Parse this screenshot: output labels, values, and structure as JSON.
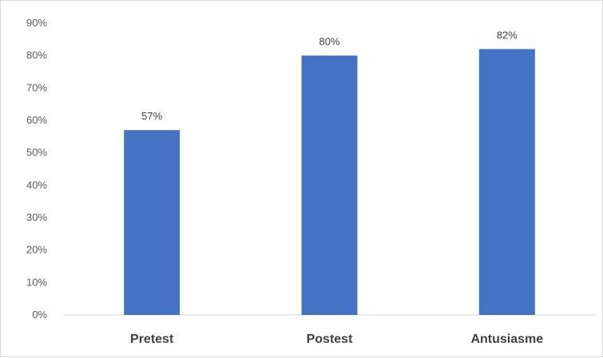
{
  "chart_data": {
    "type": "bar",
    "categories": [
      "Pretest",
      "Postest",
      "Antusiasme"
    ],
    "values": [
      57,
      80,
      82
    ],
    "data_labels": [
      "57%",
      "80%",
      "82%"
    ],
    "y_ticks": [
      "0%",
      "10%",
      "20%",
      "30%",
      "40%",
      "50%",
      "60%",
      "70%",
      "80%",
      "90%"
    ],
    "ylim": [
      0,
      90
    ],
    "grid": false,
    "legend": "none",
    "bar_color": "#4472c4",
    "axis_color": "#d9d9d9"
  }
}
